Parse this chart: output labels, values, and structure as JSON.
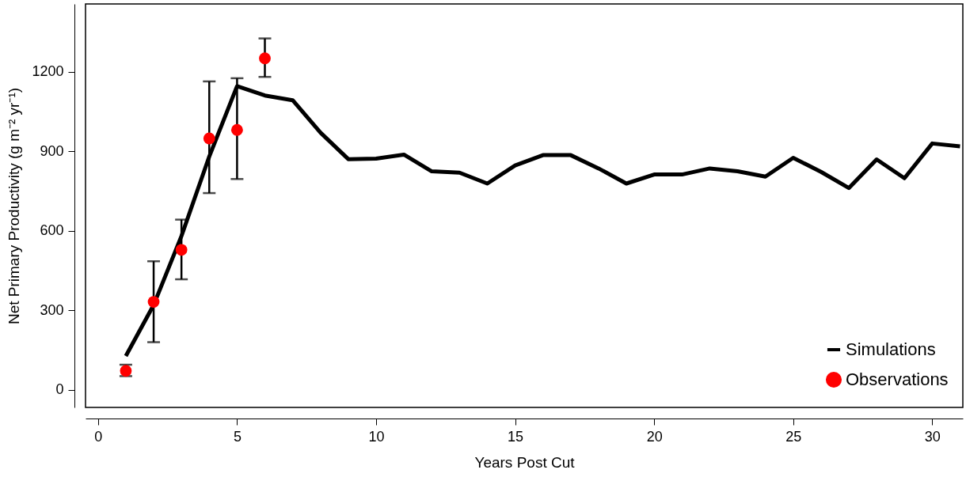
{
  "chart_data": {
    "type": "line",
    "xlabel": "Years Post Cut",
    "ylabel": "Net Primary Productivity (g m⁻² yr⁻¹)",
    "x": [
      1,
      2,
      3,
      4,
      5,
      6,
      7,
      8,
      9,
      10,
      11,
      12,
      13,
      14,
      15,
      16,
      17,
      18,
      19,
      20,
      21,
      22,
      23,
      24,
      25,
      26,
      27,
      28,
      29,
      30,
      31
    ],
    "series": [
      {
        "name": "Simulations",
        "color": "#000000",
        "values": [
          128,
          320,
          580,
          880,
          1145,
          1110,
          1092,
          970,
          870,
          872,
          887,
          824,
          819,
          778,
          846,
          885,
          885,
          835,
          778,
          812,
          812,
          835,
          824,
          804,
          875,
          822,
          761,
          869,
          798,
          929,
          918
        ]
      },
      {
        "name": "Observations",
        "type": "scatter",
        "color": "#ff0000",
        "marker": "circle",
        "x": [
          1,
          2,
          3,
          4,
          5,
          6
        ],
        "values": [
          72,
          332,
          528,
          948,
          980,
          1250
        ],
        "errors": [
          [
            52,
            95
          ],
          [
            180,
            485
          ],
          [
            417,
            642
          ],
          [
            742,
            1163
          ],
          [
            795,
            1175
          ],
          [
            1180,
            1325
          ]
        ]
      }
    ],
    "xlim": [
      -0.45,
      31.1
    ],
    "ylim": [
      -66,
      1455
    ],
    "xticks": [
      0,
      5,
      10,
      15,
      20,
      25,
      30
    ],
    "yticks": [
      0,
      300,
      600,
      900,
      1200
    ],
    "grid": false,
    "legend": "bottom right"
  }
}
